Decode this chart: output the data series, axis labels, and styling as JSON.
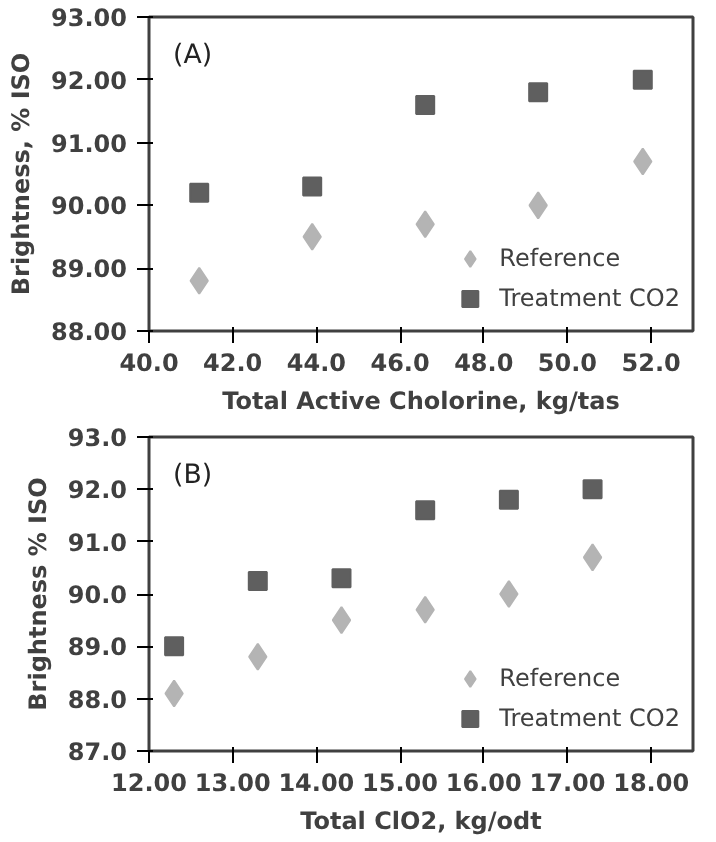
{
  "chart_data": [
    {
      "type": "scatter",
      "annotations": [
        "(A)"
      ],
      "xlabel": "Total Active Cholorine, kg/tas",
      "ylabel": "Brightness, % ISO",
      "xlim": [
        40,
        53
      ],
      "xticks": [
        {
          "value": 40,
          "label": "40.0"
        },
        {
          "value": 42,
          "label": "42.0"
        },
        {
          "value": 44,
          "label": "44.0"
        },
        {
          "value": 46,
          "label": "46.0"
        },
        {
          "value": 48,
          "label": "48.0"
        },
        {
          "value": 50,
          "label": "50.0"
        },
        {
          "value": 52,
          "label": "52.0"
        }
      ],
      "ylim": [
        88,
        93
      ],
      "yticks": [
        {
          "value": 88,
          "label": "88.00"
        },
        {
          "value": 89,
          "label": "89.00"
        },
        {
          "value": 90,
          "label": "90.00"
        },
        {
          "value": 91,
          "label": "91.00"
        },
        {
          "value": 92,
          "label": "92.00"
        },
        {
          "value": 93,
          "label": "93.00"
        }
      ],
      "grid": false,
      "legend": "bottom right",
      "series": [
        {
          "name": "Reference",
          "color": "#b4b4b4",
          "marker": "diamond",
          "x": [
            41.2,
            43.9,
            46.6,
            49.3,
            51.8
          ],
          "values": [
            88.8,
            89.5,
            89.7,
            90.0,
            90.7
          ]
        },
        {
          "name": "Treatment CO2",
          "color": "#5f5f5f",
          "marker": "square",
          "x": [
            41.2,
            43.9,
            46.6,
            49.3,
            51.8
          ],
          "values": [
            90.2,
            90.3,
            91.6,
            91.8,
            92.0
          ]
        }
      ]
    },
    {
      "type": "scatter",
      "annotations": [
        "(B)"
      ],
      "xlabel": "Total ClO2, kg/odt",
      "ylabel": "Brightness % ISO",
      "xlim": [
        12,
        18.5
      ],
      "xticks": [
        {
          "value": 12,
          "label": "12.00"
        },
        {
          "value": 13,
          "label": "13.00"
        },
        {
          "value": 14,
          "label": "14.00"
        },
        {
          "value": 15,
          "label": "15.00"
        },
        {
          "value": 16,
          "label": "16.00"
        },
        {
          "value": 17,
          "label": "17.00"
        },
        {
          "value": 18,
          "label": "18.00"
        }
      ],
      "ylim": [
        87,
        93
      ],
      "yticks": [
        {
          "value": 87,
          "label": "87.0"
        },
        {
          "value": 88,
          "label": "88.0"
        },
        {
          "value": 89,
          "label": "89.0"
        },
        {
          "value": 90,
          "label": "90.0"
        },
        {
          "value": 91,
          "label": "91.0"
        },
        {
          "value": 92,
          "label": "92.0"
        },
        {
          "value": 93,
          "label": "93.0"
        }
      ],
      "grid": false,
      "legend": "bottom right",
      "series": [
        {
          "name": "Reference",
          "color": "#b4b4b4",
          "marker": "diamond",
          "x": [
            12.3,
            13.3,
            14.3,
            15.3,
            16.3,
            17.3
          ],
          "values": [
            88.1,
            88.8,
            89.5,
            89.7,
            90.0,
            90.7
          ]
        },
        {
          "name": "Treatment CO2",
          "color": "#5f5f5f",
          "marker": "square",
          "x": [
            12.3,
            13.3,
            14.3,
            15.3,
            16.3,
            17.3
          ],
          "values": [
            89.0,
            90.25,
            90.3,
            91.6,
            91.8,
            92.0
          ]
        }
      ]
    }
  ]
}
